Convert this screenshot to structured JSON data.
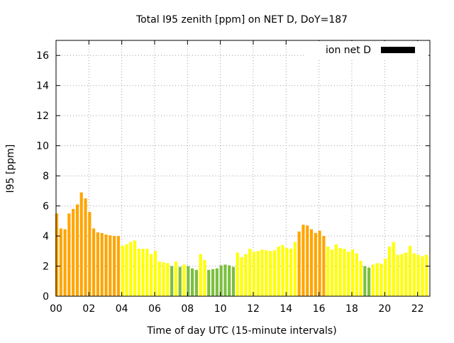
{
  "chart_data": {
    "type": "bar",
    "title": "Total I95 zenith [ppm] on NET D, DoY=187",
    "xlabel": "Time of day UTC (15-minute intervals)",
    "ylabel": "I95 [ppm]",
    "legend": {
      "label": "ion net D",
      "placement": "top-right",
      "color": "#000000"
    },
    "xlim": [
      0,
      22.75
    ],
    "ylim": [
      0,
      17
    ],
    "grid": true,
    "x_ticks": [
      {
        "value": 0,
        "label": "00"
      },
      {
        "value": 2,
        "label": "02"
      },
      {
        "value": 4,
        "label": "04"
      },
      {
        "value": 6,
        "label": "06"
      },
      {
        "value": 8,
        "label": "08"
      },
      {
        "value": 10,
        "label": "10"
      },
      {
        "value": 12,
        "label": "12"
      },
      {
        "value": 14,
        "label": "14"
      },
      {
        "value": 16,
        "label": "16"
      },
      {
        "value": 18,
        "label": "18"
      },
      {
        "value": 20,
        "label": "20"
      },
      {
        "value": 22,
        "label": "22"
      }
    ],
    "y_ticks": [
      {
        "value": 0,
        "label": "0"
      },
      {
        "value": 2,
        "label": "2"
      },
      {
        "value": 4,
        "label": "4"
      },
      {
        "value": 6,
        "label": "6"
      },
      {
        "value": 8,
        "label": "8"
      },
      {
        "value": 10,
        "label": "10"
      },
      {
        "value": 12,
        "label": "12"
      },
      {
        "value": 14,
        "label": "14"
      },
      {
        "value": 16,
        "label": "16"
      }
    ],
    "bar_interval_hours": 0.25,
    "level_colors": {
      "high": "#ffa500",
      "medium": "#ffff00",
      "low": "#7cbf3f"
    },
    "values": [
      5.5,
      4.5,
      4.45,
      5.5,
      5.8,
      6.1,
      6.9,
      6.5,
      5.6,
      4.5,
      4.25,
      4.2,
      4.1,
      4.05,
      4.0,
      4.0,
      3.35,
      3.45,
      3.6,
      3.7,
      3.15,
      3.15,
      3.15,
      2.8,
      3.0,
      2.3,
      2.25,
      2.2,
      2.0,
      2.3,
      1.95,
      2.1,
      2.0,
      1.85,
      1.75,
      2.8,
      2.4,
      1.75,
      1.8,
      1.85,
      2.05,
      2.1,
      2.05,
      1.95,
      2.9,
      2.6,
      2.8,
      3.15,
      2.95,
      3.0,
      3.1,
      3.05,
      3.0,
      3.05,
      3.3,
      3.4,
      3.2,
      3.15,
      3.6,
      4.3,
      4.75,
      4.7,
      4.45,
      4.2,
      4.35,
      4.0,
      3.3,
      3.1,
      3.45,
      3.2,
      3.15,
      2.95,
      3.1,
      2.85,
      2.35,
      2.0,
      1.9,
      2.1,
      2.2,
      2.15,
      2.5,
      3.3,
      3.6,
      2.75,
      2.8,
      2.9,
      3.35,
      2.85,
      2.75,
      2.65,
      2.75
    ],
    "levels": [
      "high",
      "high",
      "high",
      "high",
      "high",
      "high",
      "high",
      "high",
      "high",
      "high",
      "high",
      "high",
      "high",
      "high",
      "high",
      "high",
      "medium",
      "medium",
      "medium",
      "medium",
      "medium",
      "medium",
      "medium",
      "medium",
      "medium",
      "medium",
      "medium",
      "medium",
      "low",
      "medium",
      "low",
      "medium",
      "low",
      "low",
      "low",
      "medium",
      "medium",
      "low",
      "low",
      "low",
      "low",
      "low",
      "low",
      "low",
      "medium",
      "medium",
      "medium",
      "medium",
      "medium",
      "medium",
      "medium",
      "medium",
      "medium",
      "medium",
      "medium",
      "medium",
      "medium",
      "medium",
      "medium",
      "high",
      "high",
      "high",
      "high",
      "high",
      "high",
      "high",
      "medium",
      "medium",
      "medium",
      "medium",
      "medium",
      "medium",
      "medium",
      "medium",
      "medium",
      "low",
      "low",
      "medium",
      "medium",
      "medium",
      "medium",
      "medium",
      "medium",
      "medium",
      "medium",
      "medium",
      "medium",
      "medium",
      "medium",
      "medium",
      "medium"
    ]
  }
}
